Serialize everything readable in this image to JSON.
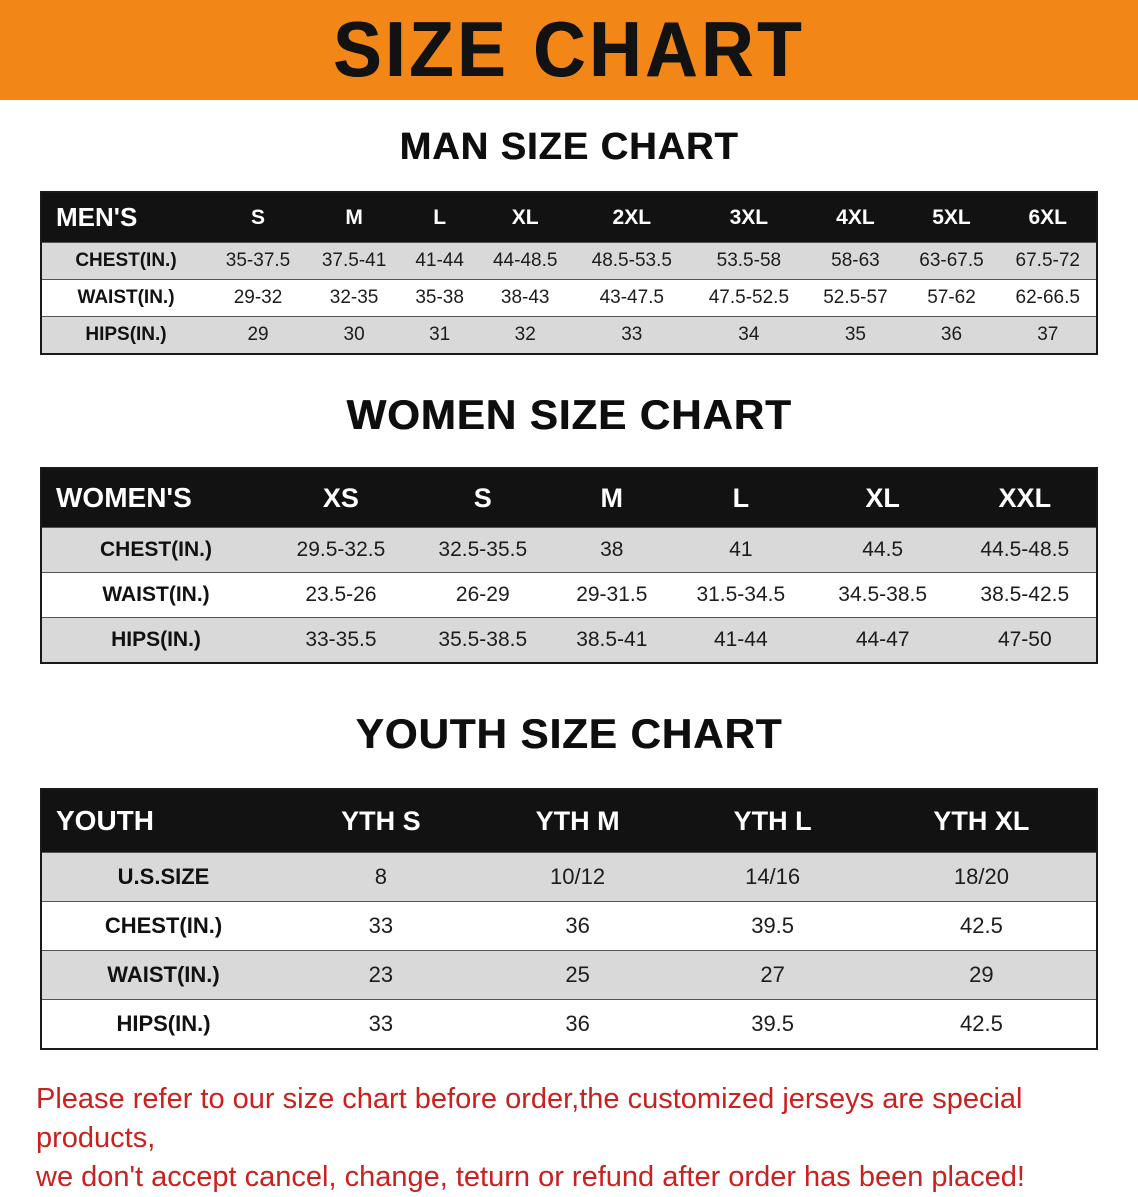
{
  "banner": {
    "title": "SIZE CHART",
    "bg_color": "#f28718",
    "text_color": "#121212"
  },
  "sections": [
    {
      "title": "MAN SIZE CHART",
      "header": [
        "MEN'S",
        "S",
        "M",
        "L",
        "XL",
        "2XL",
        "3XL",
        "4XL",
        "5XL",
        "6XL"
      ],
      "rows": [
        [
          "CHEST(IN.)",
          "35-37.5",
          "37.5-41",
          "41-44",
          "44-48.5",
          "48.5-53.5",
          "53.5-58",
          "58-63",
          "63-67.5",
          "67.5-72"
        ],
        [
          "WAIST(IN.)",
          "29-32",
          "32-35",
          "35-38",
          "38-43",
          "43-47.5",
          "47.5-52.5",
          "52.5-57",
          "57-62",
          "62-66.5"
        ],
        [
          "HIPS(IN.)",
          "29",
          "30",
          "31",
          "32",
          "33",
          "34",
          "35",
          "36",
          "37"
        ]
      ]
    },
    {
      "title": "WOMEN SIZE CHART",
      "header": [
        "WOMEN'S",
        "XS",
        "S",
        "M",
        "L",
        "XL",
        "XXL"
      ],
      "rows": [
        [
          "CHEST(IN.)",
          "29.5-32.5",
          "32.5-35.5",
          "38",
          "41",
          "44.5",
          "44.5-48.5"
        ],
        [
          "WAIST(IN.)",
          "23.5-26",
          "26-29",
          "29-31.5",
          "31.5-34.5",
          "34.5-38.5",
          "38.5-42.5"
        ],
        [
          "HIPS(IN.)",
          "33-35.5",
          "35.5-38.5",
          "38.5-41",
          "41-44",
          "44-47",
          "47-50"
        ]
      ]
    },
    {
      "title": "YOUTH SIZE CHART",
      "header": [
        "YOUTH",
        "YTH S",
        "YTH M",
        "YTH L",
        "YTH XL"
      ],
      "rows": [
        [
          "U.S.SIZE",
          "8",
          "10/12",
          "14/16",
          "18/20"
        ],
        [
          "CHEST(IN.)",
          "33",
          "36",
          "39.5",
          "42.5"
        ],
        [
          "WAIST(IN.)",
          "23",
          "25",
          "27",
          "29"
        ],
        [
          "HIPS(IN.)",
          "33",
          "36",
          "39.5",
          "42.5"
        ]
      ]
    }
  ],
  "footer": {
    "line1": "Please refer to our size chart before order,the customized jerseys are special products,",
    "line2": "we don't accept cancel, change, teturn or refund after order has been placed!",
    "text_color": "#c9211e"
  }
}
